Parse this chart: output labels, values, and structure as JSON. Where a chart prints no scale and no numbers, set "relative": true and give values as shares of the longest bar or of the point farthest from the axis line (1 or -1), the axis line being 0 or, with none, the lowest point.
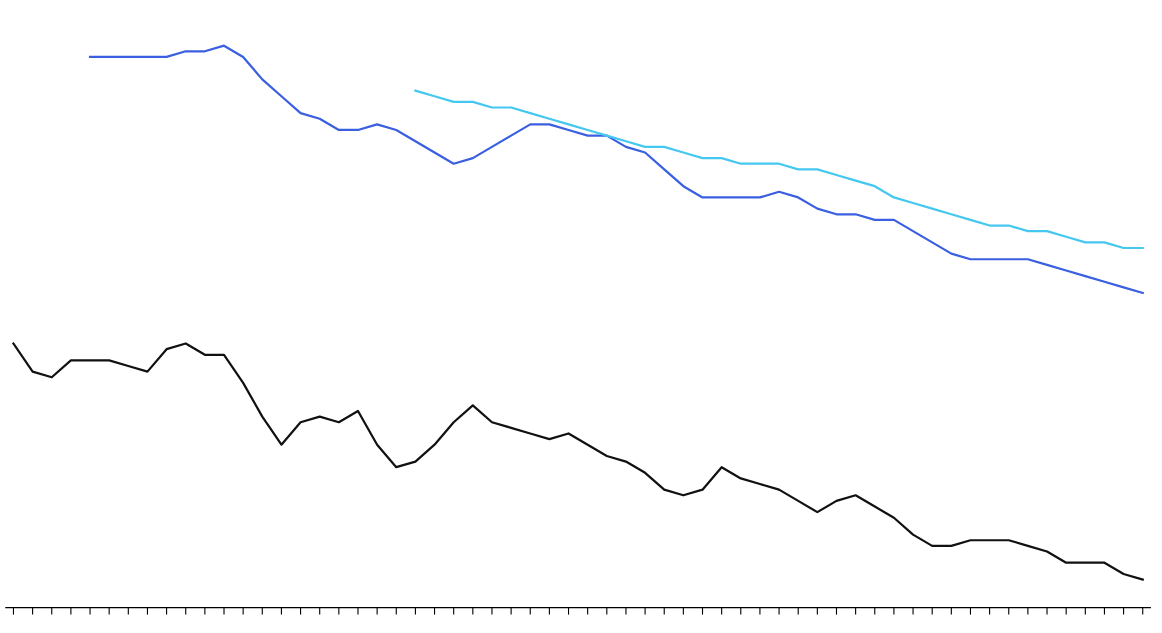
{
  "chart_data": {
    "type": "line",
    "relative": true,
    "grid": false,
    "marker": "none",
    "line_style": "solid",
    "categories": [
      null,
      null,
      null,
      null,
      null,
      null,
      null,
      null,
      null,
      null,
      null,
      null,
      null,
      null,
      null,
      null,
      null,
      null,
      null,
      null,
      null,
      null,
      null,
      null,
      null,
      null,
      null,
      null,
      null,
      null,
      null,
      null,
      null,
      null,
      null,
      null,
      null,
      null,
      null,
      null,
      null,
      null,
      null,
      null,
      null,
      null,
      null,
      null,
      null,
      null,
      null,
      null,
      null,
      null,
      null,
      null,
      null,
      null,
      null,
      null
    ],
    "series": [
      {
        "color": "#3a5fe0",
        "values": [
          null,
          null,
          null,
          null,
          0.98,
          0.98,
          0.98,
          0.98,
          0.98,
          0.99,
          0.99,
          1.0,
          0.98,
          0.94,
          0.91,
          0.88,
          0.87,
          0.85,
          0.85,
          0.86,
          0.85,
          0.83,
          0.81,
          0.79,
          0.8,
          0.82,
          0.84,
          0.86,
          0.86,
          0.85,
          0.84,
          0.84,
          0.82,
          0.81,
          0.78,
          0.75,
          0.73,
          0.73,
          0.73,
          0.73,
          0.74,
          0.73,
          0.71,
          0.7,
          0.7,
          0.69,
          0.69,
          0.67,
          0.65,
          0.63,
          0.62,
          0.62,
          0.62,
          0.62,
          0.61,
          0.6,
          0.59,
          0.58,
          0.57,
          0.56
        ]
      },
      {
        "color": "#45c8f0",
        "values": [
          null,
          null,
          null,
          null,
          null,
          null,
          null,
          null,
          null,
          null,
          null,
          null,
          null,
          null,
          null,
          null,
          null,
          null,
          null,
          null,
          null,
          0.92,
          0.91,
          0.9,
          0.9,
          0.89,
          0.89,
          0.88,
          0.87,
          0.86,
          0.85,
          0.84,
          0.83,
          0.82,
          0.82,
          0.81,
          0.8,
          0.8,
          0.79,
          0.79,
          0.79,
          0.78,
          0.78,
          0.77,
          0.76,
          0.75,
          0.73,
          0.72,
          0.71,
          0.7,
          0.69,
          0.68,
          0.68,
          0.67,
          0.67,
          0.66,
          0.65,
          0.65,
          0.64,
          0.64
        ]
      },
      {
        "color": "#111111",
        "values": [
          0.47,
          0.42,
          0.41,
          0.44,
          0.44,
          0.44,
          0.43,
          0.42,
          0.46,
          0.47,
          0.45,
          0.45,
          0.4,
          0.34,
          0.29,
          0.33,
          0.34,
          0.33,
          0.35,
          0.29,
          0.25,
          0.26,
          0.29,
          0.33,
          0.36,
          0.33,
          0.32,
          0.31,
          0.3,
          0.31,
          0.29,
          0.27,
          0.26,
          0.24,
          0.21,
          0.2,
          0.21,
          0.25,
          0.23,
          0.22,
          0.21,
          0.19,
          0.17,
          0.19,
          0.2,
          0.18,
          0.16,
          0.13,
          0.11,
          0.11,
          0.12,
          0.12,
          0.12,
          0.11,
          0.1,
          0.08,
          0.08,
          0.08,
          0.06,
          0.05
        ]
      }
    ]
  }
}
